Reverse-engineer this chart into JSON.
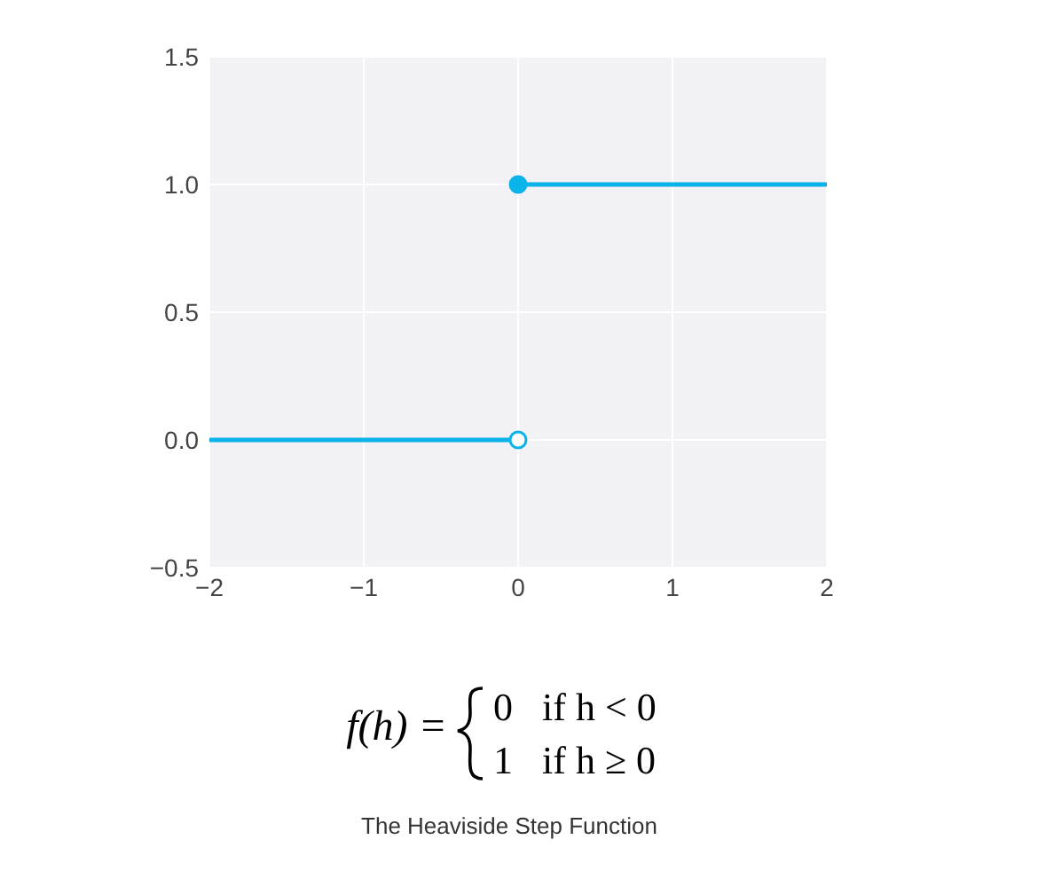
{
  "chart_data": {
    "type": "line",
    "xlim": [
      -2,
      2
    ],
    "ylim": [
      -0.5,
      1.5
    ],
    "xticks": [
      {
        "value": -2,
        "label": "−2"
      },
      {
        "value": -1,
        "label": "−1"
      },
      0,
      1,
      2
    ],
    "yticks": [
      {
        "value": -0.5,
        "label": "−0.5"
      },
      {
        "value": 0,
        "label": "0.0"
      },
      0.5,
      {
        "value": 1,
        "label": "1.0"
      },
      1.5
    ],
    "grid": true,
    "marker": "circle",
    "line_style": "solid",
    "series": [
      {
        "x": [
          -2,
          0
        ],
        "values": [
          0,
          0
        ],
        "color": "#0bb4e8",
        "marker": "none"
      },
      {
        "x": [
          0,
          2
        ],
        "values": [
          1,
          1
        ],
        "color": "#0bb4e8",
        "marker": "none"
      },
      {
        "type": "scatter",
        "x": [
          0
        ],
        "values": [
          0
        ],
        "color": "#ffffff"
      },
      {
        "type": "scatter",
        "x": [
          0
        ],
        "values": [
          1
        ],
        "color": "#0bb4e8"
      }
    ],
    "annotations": [
      "f(h) =",
      "0   if h < 0",
      "1   if h ≥ 0",
      "The Heaviside Step Function"
    ]
  }
}
